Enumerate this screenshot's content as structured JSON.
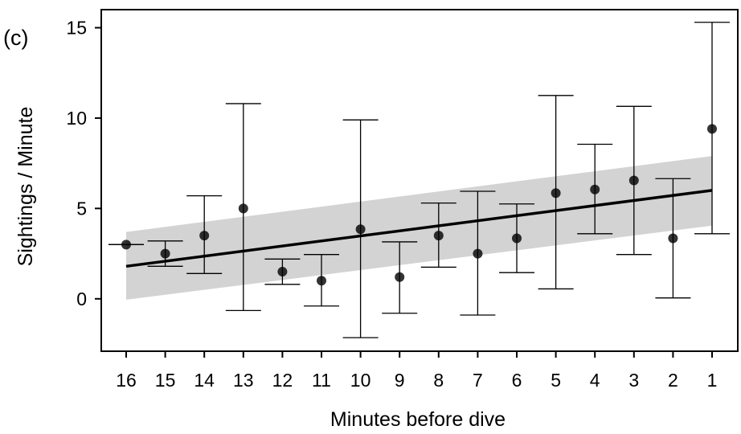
{
  "panel_label": "(c)",
  "chart_data": {
    "type": "scatter",
    "xlabel": "Minutes before dive",
    "ylabel": "Sightings / Minute",
    "categories": [
      "16",
      "15",
      "14",
      "13",
      "12",
      "11",
      "10",
      "9",
      "8",
      "7",
      "6",
      "5",
      "4",
      "3",
      "2",
      "1"
    ],
    "ylim": [
      -2.9,
      16.0
    ],
    "y_ticks": [
      0,
      5,
      10,
      15
    ],
    "legend": "none",
    "grid": false,
    "series": [
      {
        "kind": "points_with_error_bars",
        "values": [
          3.0,
          2.5,
          3.5,
          5.0,
          1.5,
          1.0,
          3.85,
          1.2,
          3.5,
          2.5,
          3.35,
          5.85,
          6.05,
          6.55,
          3.35,
          9.4
        ],
        "lower": [
          3.0,
          1.8,
          1.4,
          -0.65,
          0.8,
          -0.4,
          -2.15,
          -0.8,
          1.75,
          -0.9,
          1.45,
          0.55,
          3.6,
          2.45,
          0.05,
          3.6
        ],
        "upper": [
          3.0,
          3.2,
          5.7,
          10.8,
          2.2,
          2.45,
          9.9,
          3.15,
          5.3,
          5.95,
          5.25,
          11.25,
          8.55,
          10.65,
          6.65,
          15.3
        ]
      }
    ],
    "trend_line": {
      "start": {
        "x": "16",
        "y": 1.8
      },
      "end": {
        "x": "1",
        "y": 6.0
      }
    },
    "confidence_band": {
      "lower_start": -0.05,
      "upper_start": 3.7,
      "lower_end": 4.05,
      "upper_end": 7.9,
      "color": "#d3d3d3"
    }
  }
}
